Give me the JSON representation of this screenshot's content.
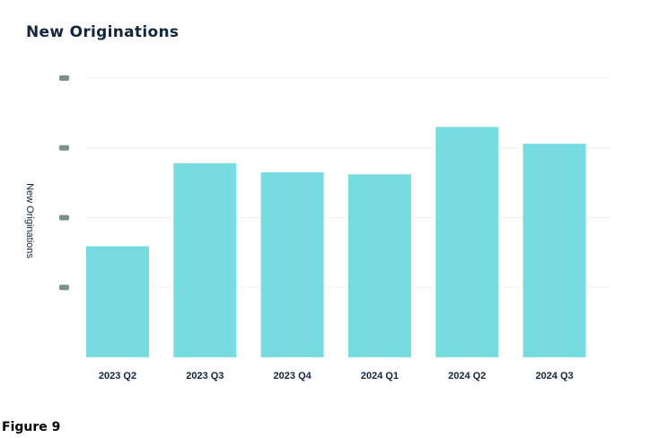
{
  "title": "New Originations",
  "caption": "Figure 9",
  "colors": {
    "bar": "#76dcdf",
    "text": "#13263f",
    "grid": "#eef0f2",
    "redacted_tick": "#4f6b6b"
  },
  "chart_data": {
    "type": "bar",
    "title": "New Originations",
    "xlabel": "",
    "ylabel": "New Originations",
    "categories": [
      "2023 Q2",
      "2023 Q3",
      "2023 Q4",
      "2024 Q1",
      "2024 Q2",
      "2024 Q3"
    ],
    "values": [
      1.59,
      2.78,
      2.65,
      2.62,
      3.3,
      3.06
    ],
    "ylim": [
      0,
      4
    ],
    "yticks": [
      1,
      2,
      3,
      4
    ],
    "ytick_labels_redacted": true,
    "grid": true,
    "legend": "none"
  }
}
